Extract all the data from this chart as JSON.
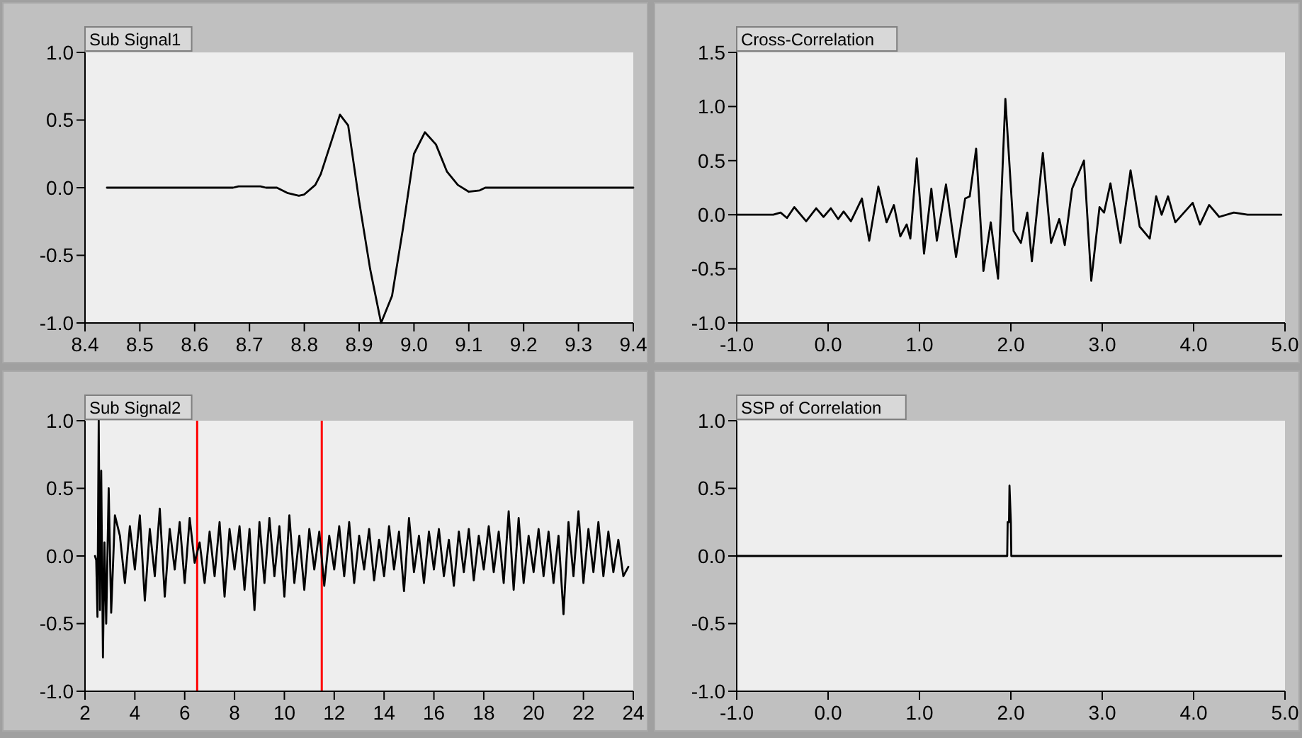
{
  "chart_data": [
    {
      "type": "line",
      "title": "Sub Signal1",
      "x": [
        8.44,
        8.67,
        8.68,
        8.72,
        8.73,
        8.75,
        8.77,
        8.79,
        8.8,
        8.82,
        8.83,
        8.85,
        8.865,
        8.88,
        8.9,
        8.92,
        8.94,
        8.96,
        8.98,
        9.0,
        9.02,
        9.04,
        9.06,
        9.08,
        9.1,
        9.12,
        9.13,
        9.4
      ],
      "series": [
        {
          "color": "#000000",
          "values": [
            0,
            0,
            0.01,
            0.01,
            0,
            0,
            -0.04,
            -0.06,
            -0.05,
            0.02,
            0.1,
            0.35,
            0.54,
            0.46,
            -0.1,
            -0.6,
            -1.0,
            -0.8,
            -0.3,
            0.25,
            0.41,
            0.32,
            0.12,
            0.02,
            -0.03,
            -0.02,
            0,
            0
          ]
        }
      ],
      "xlim": [
        8.4,
        9.4
      ],
      "ylim": [
        -1,
        1
      ],
      "xticks": [
        {
          "value": 8.4,
          "label": "8.4"
        },
        {
          "value": 8.5,
          "label": "8.5"
        },
        {
          "value": 8.6,
          "label": "8.6"
        },
        {
          "value": 8.7,
          "label": "8.7"
        },
        {
          "value": 8.8,
          "label": "8.8"
        },
        {
          "value": 8.9,
          "label": "8.9"
        },
        {
          "value": 9,
          "label": "9.0"
        },
        {
          "value": 9.1,
          "label": "9.1"
        },
        {
          "value": 9.2,
          "label": "9.2"
        },
        {
          "value": 9.3,
          "label": "9.3"
        },
        {
          "value": 9.4,
          "label": "9.4"
        }
      ],
      "yticks": [
        {
          "value": -1,
          "label": "-1.0"
        },
        {
          "value": -0.5,
          "label": "-0.5"
        },
        {
          "value": 0,
          "label": "0.0"
        },
        {
          "value": 0.5,
          "label": "0.5"
        },
        {
          "value": 1,
          "label": "1.0"
        }
      ]
    },
    {
      "type": "line",
      "title": "Cross-Correlation",
      "x": [
        -1.0,
        -0.6,
        -0.52,
        -0.45,
        -0.37,
        -0.24,
        -0.13,
        -0.05,
        0.03,
        0.11,
        0.17,
        0.25,
        0.37,
        0.45,
        0.55,
        0.64,
        0.72,
        0.79,
        0.86,
        0.9,
        0.97,
        1.05,
        1.13,
        1.19,
        1.29,
        1.4,
        1.5,
        1.55,
        1.62,
        1.7,
        1.78,
        1.86,
        1.94,
        2.03,
        2.11,
        2.18,
        2.23,
        2.35,
        2.44,
        2.53,
        2.59,
        2.67,
        2.8,
        2.88,
        2.97,
        3.02,
        3.09,
        3.2,
        3.31,
        3.41,
        3.52,
        3.59,
        3.65,
        3.72,
        3.8,
        3.99,
        4.07,
        4.17,
        4.28,
        4.44,
        4.59,
        4.96
      ],
      "series": [
        {
          "color": "#000000",
          "values": [
            0,
            0,
            0.02,
            -0.03,
            0.07,
            -0.06,
            0.06,
            -0.02,
            0.06,
            -0.04,
            0.03,
            -0.06,
            0.15,
            -0.24,
            0.26,
            -0.07,
            0.09,
            -0.2,
            -0.09,
            -0.22,
            0.52,
            -0.36,
            0.24,
            -0.24,
            0.28,
            -0.39,
            0.15,
            0.17,
            0.61,
            -0.52,
            -0.07,
            -0.59,
            1.07,
            -0.15,
            -0.26,
            0.02,
            -0.43,
            0.57,
            -0.26,
            -0.04,
            -0.28,
            0.24,
            0.5,
            -0.61,
            0.07,
            0.02,
            0.29,
            -0.26,
            0.41,
            -0.11,
            -0.22,
            0.17,
            0,
            0.17,
            -0.07,
            0.11,
            -0.09,
            0.09,
            -0.02,
            0.02,
            0,
            0
          ]
        }
      ],
      "xlim": [
        -1,
        5
      ],
      "ylim": [
        -1,
        1.5
      ],
      "xticks": [
        {
          "value": -1,
          "label": "-1.0"
        },
        {
          "value": 0,
          "label": "0.0"
        },
        {
          "value": 1,
          "label": "1.0"
        },
        {
          "value": 2,
          "label": "2.0"
        },
        {
          "value": 3,
          "label": "3.0"
        },
        {
          "value": 4,
          "label": "4.0"
        },
        {
          "value": 5,
          "label": "5.0"
        }
      ],
      "yticks": [
        {
          "value": -1,
          "label": "-1.0"
        },
        {
          "value": -0.5,
          "label": "-0.5"
        },
        {
          "value": 0,
          "label": "0.0"
        },
        {
          "value": 0.5,
          "label": "0.5"
        },
        {
          "value": 1,
          "label": "1.0"
        },
        {
          "value": 1.5,
          "label": "1.5"
        }
      ]
    },
    {
      "type": "line",
      "title": "Sub Signal2",
      "x": [
        2.4,
        2.45,
        2.5,
        2.55,
        2.6,
        2.65,
        2.72,
        2.78,
        2.85,
        2.95,
        3.05,
        3.2,
        3.4,
        3.6,
        3.8,
        4.0,
        4.2,
        4.4,
        4.6,
        4.8,
        5.0,
        5.2,
        5.4,
        5.6,
        5.8,
        6.0,
        6.2,
        6.4,
        6.6,
        6.8,
        7.0,
        7.2,
        7.4,
        7.6,
        7.8,
        8.0,
        8.2,
        8.4,
        8.6,
        8.8,
        9.0,
        9.2,
        9.4,
        9.6,
        9.8,
        10.0,
        10.2,
        10.4,
        10.6,
        10.8,
        11.0,
        11.2,
        11.4,
        11.6,
        11.8,
        12.0,
        12.2,
        12.4,
        12.6,
        12.8,
        13.0,
        13.2,
        13.4,
        13.6,
        13.8,
        14.0,
        14.2,
        14.4,
        14.6,
        14.8,
        15.0,
        15.2,
        15.4,
        15.6,
        15.8,
        16.0,
        16.2,
        16.4,
        16.6,
        16.8,
        17.0,
        17.2,
        17.4,
        17.6,
        17.8,
        18.0,
        18.2,
        18.4,
        18.6,
        18.8,
        19.0,
        19.2,
        19.4,
        19.6,
        19.8,
        20.0,
        20.2,
        20.4,
        20.6,
        20.8,
        21.0,
        21.2,
        21.4,
        21.6,
        21.8,
        22.0,
        22.2,
        22.4,
        22.6,
        22.8,
        23.0,
        23.2,
        23.4,
        23.6,
        23.8
      ],
      "series": [
        {
          "color": "#000000",
          "values": [
            0,
            -0.03,
            -0.45,
            1.0,
            -0.4,
            0.63,
            -0.75,
            0.1,
            -0.5,
            0.5,
            -0.42,
            0.3,
            0.15,
            -0.2,
            0.22,
            -0.1,
            0.3,
            -0.33,
            0.2,
            -0.15,
            0.35,
            -0.3,
            0.2,
            -0.1,
            0.25,
            -0.2,
            0.28,
            -0.05,
            0.1,
            -0.2,
            0.18,
            -0.15,
            0.25,
            -0.3,
            0.2,
            -0.1,
            0.22,
            -0.25,
            0.2,
            -0.4,
            0.25,
            -0.2,
            0.28,
            -0.15,
            0.22,
            -0.3,
            0.3,
            -0.2,
            0.15,
            -0.25,
            0.2,
            -0.1,
            0.18,
            -0.22,
            0.15,
            -0.1,
            0.22,
            -0.15,
            0.25,
            -0.2,
            0.15,
            -0.1,
            0.2,
            -0.18,
            0.12,
            -0.15,
            0.22,
            -0.1,
            0.18,
            -0.26,
            0.28,
            -0.12,
            0.15,
            -0.2,
            0.18,
            -0.1,
            0.2,
            -0.15,
            0.12,
            -0.22,
            0.18,
            -0.12,
            0.2,
            -0.18,
            0.15,
            -0.1,
            0.22,
            -0.12,
            0.18,
            -0.2,
            0.33,
            -0.25,
            0.28,
            -0.2,
            0.15,
            -0.12,
            0.2,
            -0.15,
            0.18,
            -0.2,
            0.15,
            -0.43,
            0.25,
            -0.15,
            0.33,
            -0.2,
            0.2,
            -0.12,
            0.25,
            -0.15,
            0.18,
            -0.12,
            0.12,
            -0.15,
            -0.08
          ]
        }
      ],
      "ref_lines": [
        {
          "axis": "x",
          "value": 6.5,
          "color": "#ff0000"
        },
        {
          "axis": "x",
          "value": 11.5,
          "color": "#ff0000"
        }
      ],
      "xlim": [
        2,
        24
      ],
      "ylim": [
        -1,
        1
      ],
      "xticks": [
        2,
        4,
        6,
        8,
        10,
        12,
        14,
        16,
        18,
        20,
        22,
        24
      ],
      "yticks": [
        {
          "value": -1,
          "label": "-1.0"
        },
        {
          "value": -0.5,
          "label": "-0.5"
        },
        {
          "value": 0,
          "label": "0.0"
        },
        {
          "value": 0.5,
          "label": "0.5"
        },
        {
          "value": 1,
          "label": "1.0"
        }
      ]
    },
    {
      "type": "line",
      "title": "SSP of Correlation",
      "x": [
        -1.0,
        1.96,
        1.965,
        1.98,
        1.985,
        2.0,
        2.005,
        4.96
      ],
      "series": [
        {
          "color": "#000000",
          "values": [
            0,
            0,
            0.25,
            0.25,
            0.52,
            0.25,
            0,
            0
          ]
        }
      ],
      "xlim": [
        -1,
        5
      ],
      "ylim": [
        -1,
        1
      ],
      "xticks": [
        {
          "value": -1,
          "label": "-1.0"
        },
        {
          "value": 0,
          "label": "0.0"
        },
        {
          "value": 1,
          "label": "1.0"
        },
        {
          "value": 2,
          "label": "2.0"
        },
        {
          "value": 3,
          "label": "3.0"
        },
        {
          "value": 4,
          "label": "4.0"
        },
        {
          "value": 5,
          "label": "5.0"
        }
      ],
      "yticks": [
        {
          "value": -1,
          "label": "-1.0"
        },
        {
          "value": -0.5,
          "label": "-0.5"
        },
        {
          "value": 0,
          "label": "0.0"
        },
        {
          "value": 0.5,
          "label": "0.5"
        },
        {
          "value": 1,
          "label": "1.0"
        }
      ]
    }
  ]
}
